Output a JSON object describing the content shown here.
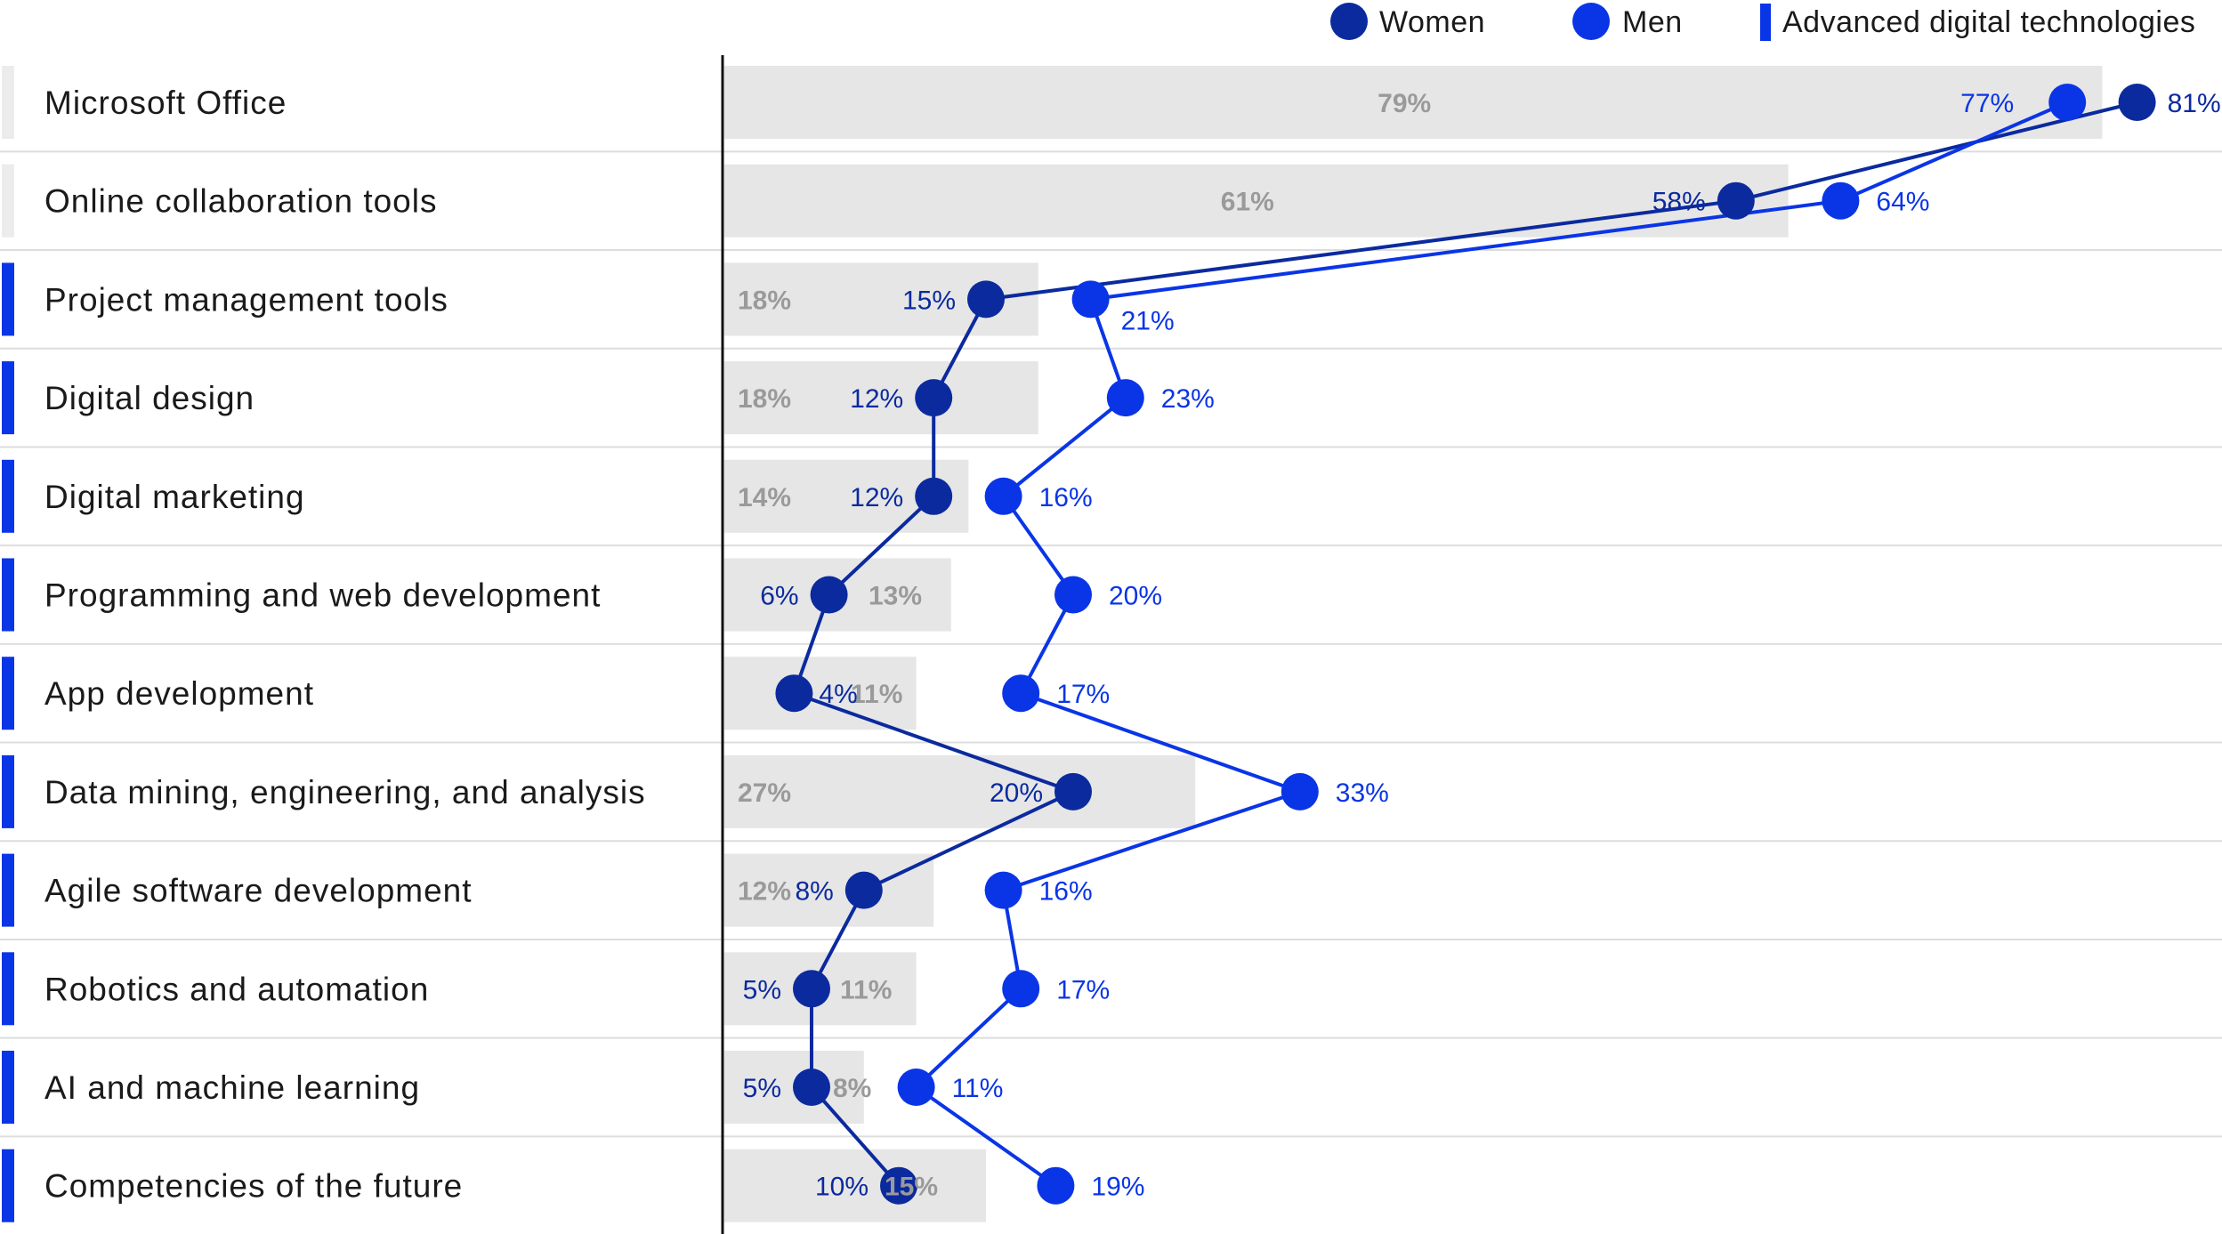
{
  "colors": {
    "women": "#0b2a9e",
    "men": "#0a35e6",
    "advanced_marker": "#0a35e6",
    "basic_marker": "#ececec",
    "total_bar": "#e6e6e6",
    "total_text": "#9a9a9a",
    "separator": "#dddddd",
    "axis": "#111111"
  },
  "legend": {
    "women": "Women",
    "men": "Men",
    "advanced": "Advanced digital technologies"
  },
  "chart_data": {
    "type": "bar",
    "title": "",
    "xlabel": "",
    "ylabel": "",
    "xlim": [
      0,
      100
    ],
    "grid": false,
    "legend_position": "top-right",
    "categories": [
      "Microsoft Office",
      "Online collaboration tools",
      "Project management tools",
      "Digital design",
      "Digital marketing",
      "Programming and web development",
      "App development",
      "Data mining, engineering, and analysis",
      "Agile software development",
      "Robotics and automation",
      "AI and machine learning",
      "Competencies of the future"
    ],
    "advanced": [
      false,
      false,
      true,
      true,
      true,
      true,
      true,
      true,
      true,
      true,
      true,
      true
    ],
    "series": [
      {
        "name": "",
        "kind": "bar",
        "values": [
          79,
          61,
          18,
          18,
          14,
          13,
          11,
          27,
          12,
          11,
          8,
          15
        ],
        "labels": [
          "79%",
          "61%",
          "18%",
          "18%",
          "14%",
          "13%",
          "11%",
          "27%",
          "12%",
          "11%",
          "8%",
          "15%"
        ]
      },
      {
        "name": "Women",
        "kind": "line",
        "values": [
          81,
          58,
          15,
          12,
          12,
          6,
          4,
          20,
          8,
          5,
          5,
          10
        ],
        "labels": [
          "81%",
          "58%",
          "15%",
          "12%",
          "12%",
          "6%",
          "4%",
          "20%",
          "8%",
          "5%",
          "5%",
          "10%"
        ]
      },
      {
        "name": "Men",
        "kind": "line",
        "values": [
          77,
          64,
          21,
          23,
          16,
          20,
          17,
          33,
          16,
          17,
          11,
          19
        ],
        "labels": [
          "77%",
          "64%",
          "21%",
          "23%",
          "16%",
          "20%",
          "17%",
          "33%",
          "16%",
          "17%",
          "11%",
          "19%"
        ]
      }
    ]
  }
}
